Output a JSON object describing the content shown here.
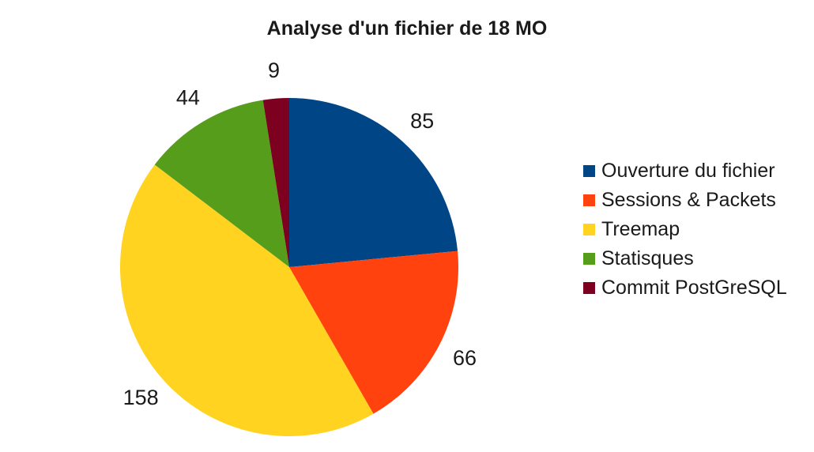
{
  "chart_data": {
    "type": "pie",
    "title": "Analyse d'un fichier de 18 MO",
    "legend_position": "right",
    "slices": [
      {
        "label": "Ouverture du fichier",
        "value": 85,
        "value_label": "85",
        "color": "#004586"
      },
      {
        "label": "Sessions & Packets",
        "value": 66,
        "value_label": "66",
        "color": "#ff420e"
      },
      {
        "label": "Treemap",
        "value": 158,
        "value_label": "158",
        "color": "#ffd320"
      },
      {
        "label": "Statisques",
        "value": 44,
        "value_label": "44",
        "color": "#579d1c"
      },
      {
        "label": "Commit PostGreSQL",
        "value": 9,
        "value_label": "9",
        "color": "#7e0021"
      }
    ]
  }
}
